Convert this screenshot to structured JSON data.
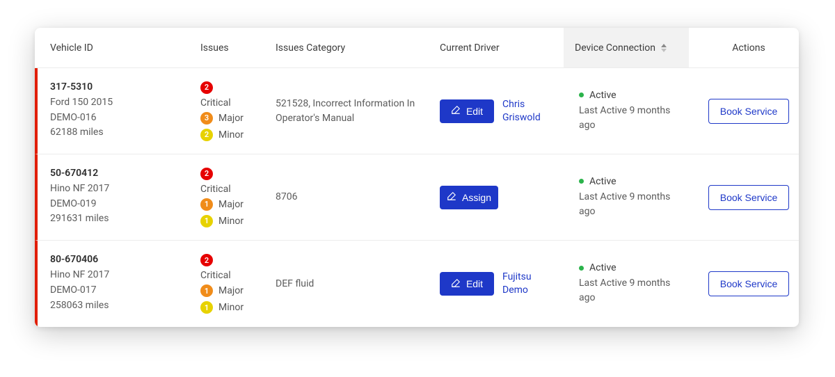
{
  "colors": {
    "row_accent_left": "#e11d00",
    "link": "#1e38c8",
    "btn_primary_bg": "#1e38c8",
    "btn_outline_border": "#1e38c8",
    "header_sorted_bg": "#f2f2f2",
    "border": "#ececec",
    "status_dot_active": "#2bb34b",
    "badge_critical": "#e60000",
    "badge_major": "#f08c1a",
    "badge_minor": "#e7d200"
  },
  "table": {
    "columns": [
      {
        "key": "vehicle_id",
        "label": "Vehicle ID"
      },
      {
        "key": "issues",
        "label": "Issues"
      },
      {
        "key": "issues_category",
        "label": "Issues Category"
      },
      {
        "key": "current_driver",
        "label": "Current Driver"
      },
      {
        "key": "device_connection",
        "label": "Device Connection",
        "sorted": true
      },
      {
        "key": "actions",
        "label": "Actions"
      }
    ]
  },
  "strings": {
    "book_service": "Book Service",
    "edit": "Edit",
    "assign": "Assign"
  },
  "rows": [
    {
      "vehicle": {
        "id": "317-5310",
        "model": "Ford 150 2015",
        "asset": "DEMO-016",
        "odometer": "62188 miles"
      },
      "issues": {
        "critical": 2,
        "major": 3,
        "minor": 2
      },
      "issues_category": "521528, Incorrect Information In Operator's Manual",
      "driver_action": "edit",
      "driver_name": "Chris Griswold",
      "connection": {
        "status": "Active",
        "last_active": "Last Active 9 months ago"
      }
    },
    {
      "vehicle": {
        "id": "50-670412",
        "model": "Hino NF 2017",
        "asset": "DEMO-019",
        "odometer": "291631 miles"
      },
      "issues": {
        "critical": 2,
        "major": 1,
        "minor": 1
      },
      "issues_category": "8706",
      "driver_action": "assign",
      "driver_name": "",
      "connection": {
        "status": "Active",
        "last_active": "Last Active 9 months ago"
      }
    },
    {
      "vehicle": {
        "id": "80-670406",
        "model": "Hino NF 2017",
        "asset": "DEMO-017",
        "odometer": "258063 miles"
      },
      "issues": {
        "critical": 2,
        "major": 1,
        "minor": 1
      },
      "issues_category": "DEF fluid",
      "driver_action": "edit",
      "driver_name": "Fujitsu Demo",
      "connection": {
        "status": "Active",
        "last_active": "Last Active 9 months ago"
      }
    }
  ]
}
